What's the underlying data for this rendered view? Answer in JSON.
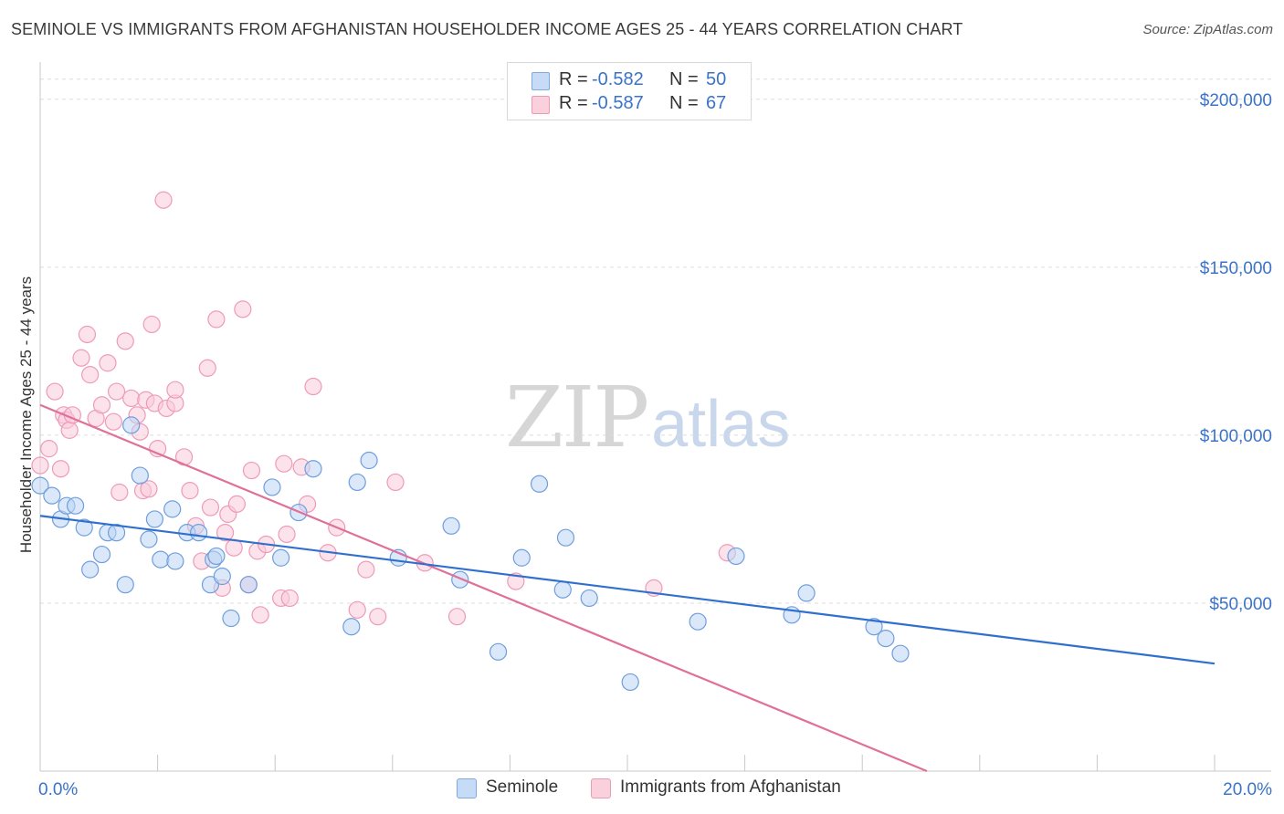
{
  "title": "SEMINOLE VS IMMIGRANTS FROM AFGHANISTAN HOUSEHOLDER INCOME AGES 25 - 44 YEARS CORRELATION CHART",
  "source": "Source: ZipAtlas.com",
  "watermark": {
    "zip": "ZIP",
    "atlas": "atlas"
  },
  "legend": {
    "seminole": {
      "r_label": "R =",
      "r_value": "-0.582",
      "n_label": "N =",
      "n_value": "50"
    },
    "afghan": {
      "r_label": "R =",
      "r_value": "-0.587",
      "n_label": "N =",
      "n_value": "67"
    }
  },
  "bottom_legend": {
    "seminole": "Seminole",
    "afghan": "Immigrants from Afghanistan"
  },
  "chart_data": {
    "type": "scatter",
    "ylabel": "Householder Income Ages 25 - 44 years",
    "xlabel": "",
    "xlim": [
      0,
      20
    ],
    "ylim": [
      0,
      210000
    ],
    "x_tick_labels": [
      {
        "value": 0,
        "label": "0.0%"
      },
      {
        "value": 20,
        "label": "20.0%"
      }
    ],
    "y_ticks": [
      {
        "value": 50000,
        "label": "$50,000"
      },
      {
        "value": 100000,
        "label": "$100,000"
      },
      {
        "value": 150000,
        "label": "$150,000"
      },
      {
        "value": 200000,
        "label": "$200,000"
      }
    ],
    "grid": true,
    "colors": {
      "seminole": "#a9c8f0",
      "seminole_line": "#2f6fce",
      "afghan": "#f5b8cc",
      "afghan_line": "#e0709a",
      "axis_label": "#3b73c8"
    },
    "series": [
      {
        "name": "Seminole",
        "color": "#a9c8f0",
        "trend": {
          "x": [
            0.0,
            20.0
          ],
          "y": [
            76000,
            32000
          ]
        },
        "points": [
          [
            0.0,
            85000
          ],
          [
            0.2,
            82000
          ],
          [
            0.35,
            75000
          ],
          [
            0.45,
            79000
          ],
          [
            0.6,
            79000
          ],
          [
            0.75,
            72500
          ],
          [
            0.85,
            60000
          ],
          [
            1.05,
            64500
          ],
          [
            1.15,
            71000
          ],
          [
            1.3,
            71000
          ],
          [
            1.45,
            55500
          ],
          [
            1.7,
            88000
          ],
          [
            1.85,
            69000
          ],
          [
            1.95,
            75000
          ],
          [
            2.05,
            63000
          ],
          [
            2.3,
            62500
          ],
          [
            2.25,
            78000
          ],
          [
            2.5,
            71000
          ],
          [
            2.7,
            71000
          ],
          [
            2.9,
            55500
          ],
          [
            2.95,
            63000
          ],
          [
            3.0,
            64000
          ],
          [
            3.1,
            58000
          ],
          [
            3.25,
            45500
          ],
          [
            3.55,
            55500
          ],
          [
            3.95,
            84500
          ],
          [
            4.1,
            63500
          ],
          [
            4.4,
            77000
          ],
          [
            4.65,
            90000
          ],
          [
            5.3,
            43000
          ],
          [
            5.4,
            86000
          ],
          [
            5.6,
            92500
          ],
          [
            6.1,
            63500
          ],
          [
            7.0,
            73000
          ],
          [
            7.15,
            57000
          ],
          [
            7.8,
            35500
          ],
          [
            8.2,
            63500
          ],
          [
            8.5,
            85500
          ],
          [
            8.9,
            54000
          ],
          [
            8.95,
            69500
          ],
          [
            9.35,
            51500
          ],
          [
            10.05,
            26500
          ],
          [
            11.2,
            44500
          ],
          [
            11.85,
            64000
          ],
          [
            12.8,
            46500
          ],
          [
            13.05,
            53000
          ],
          [
            14.2,
            43000
          ],
          [
            14.4,
            39500
          ],
          [
            14.65,
            35000
          ],
          [
            1.55,
            103000
          ]
        ]
      },
      {
        "name": "Immigrants from Afghanistan",
        "color": "#f5b8cc",
        "trend": {
          "x": [
            0.0,
            15.1
          ],
          "y": [
            109000,
            0
          ]
        },
        "points": [
          [
            0.0,
            91000
          ],
          [
            0.15,
            96000
          ],
          [
            0.25,
            113000
          ],
          [
            0.35,
            90000
          ],
          [
            0.4,
            106000
          ],
          [
            0.45,
            104500
          ],
          [
            0.5,
            101500
          ],
          [
            0.55,
            106000
          ],
          [
            0.7,
            123000
          ],
          [
            0.8,
            130000
          ],
          [
            0.85,
            118000
          ],
          [
            0.95,
            105000
          ],
          [
            1.05,
            109000
          ],
          [
            1.15,
            121500
          ],
          [
            1.25,
            104000
          ],
          [
            1.3,
            113000
          ],
          [
            1.35,
            83000
          ],
          [
            1.45,
            128000
          ],
          [
            1.55,
            111000
          ],
          [
            1.65,
            106000
          ],
          [
            1.7,
            101000
          ],
          [
            1.75,
            83500
          ],
          [
            1.8,
            110500
          ],
          [
            1.85,
            84000
          ],
          [
            1.9,
            133000
          ],
          [
            1.95,
            109500
          ],
          [
            2.0,
            96000
          ],
          [
            2.1,
            170000
          ],
          [
            2.15,
            108000
          ],
          [
            2.3,
            109500
          ],
          [
            2.3,
            113500
          ],
          [
            2.45,
            93500
          ],
          [
            2.55,
            83500
          ],
          [
            2.65,
            73000
          ],
          [
            2.75,
            62500
          ],
          [
            2.85,
            120000
          ],
          [
            2.9,
            78500
          ],
          [
            3.0,
            134500
          ],
          [
            3.1,
            54500
          ],
          [
            3.15,
            71000
          ],
          [
            3.2,
            76500
          ],
          [
            3.3,
            66500
          ],
          [
            3.35,
            79500
          ],
          [
            3.45,
            137500
          ],
          [
            3.55,
            55500
          ],
          [
            3.6,
            89500
          ],
          [
            3.7,
            65500
          ],
          [
            3.75,
            46500
          ],
          [
            3.85,
            67500
          ],
          [
            4.1,
            51500
          ],
          [
            4.15,
            91500
          ],
          [
            4.2,
            70500
          ],
          [
            4.25,
            51500
          ],
          [
            4.45,
            90500
          ],
          [
            4.55,
            79500
          ],
          [
            4.65,
            114500
          ],
          [
            4.9,
            65000
          ],
          [
            5.05,
            72500
          ],
          [
            5.4,
            48000
          ],
          [
            5.55,
            60000
          ],
          [
            5.75,
            46000
          ],
          [
            6.05,
            86000
          ],
          [
            6.55,
            62000
          ],
          [
            7.1,
            46000
          ],
          [
            8.1,
            56500
          ],
          [
            10.45,
            54500
          ],
          [
            11.7,
            65000
          ]
        ]
      }
    ]
  }
}
